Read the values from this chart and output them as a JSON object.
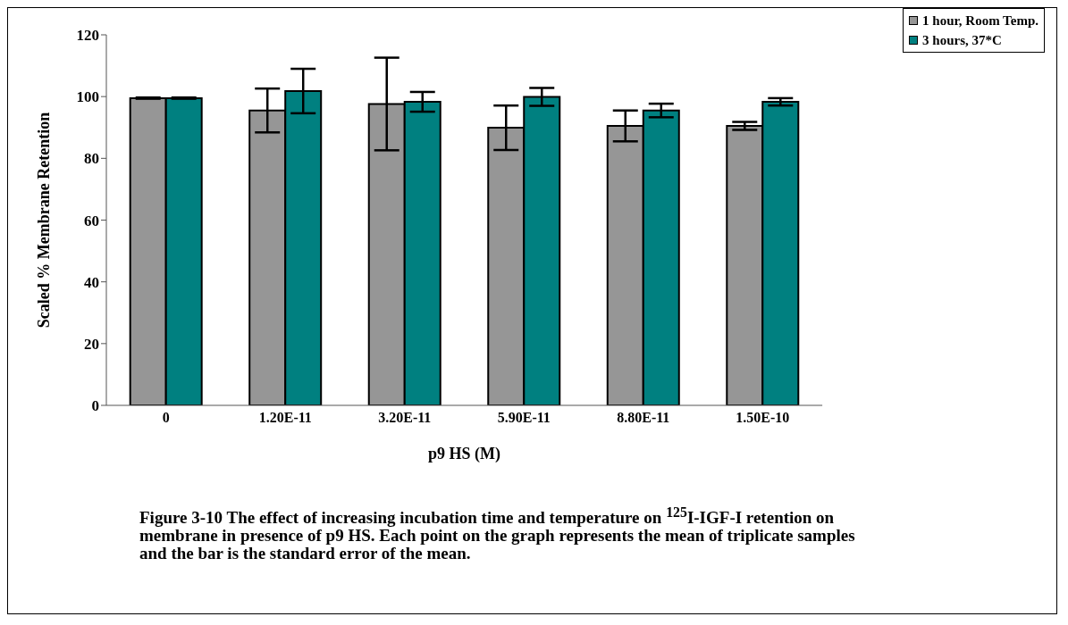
{
  "chart_data": {
    "type": "bar",
    "xlabel": "p9 HS (M)",
    "ylabel": "Scaled % Membrane Retention",
    "categories": [
      "0",
      "1.20E-11",
      "3.20E-11",
      "5.90E-11",
      "8.80E-11",
      "1.50E-10"
    ],
    "series": [
      {
        "name": "1 hour, Room Temp.",
        "color": "#969696",
        "values": [
          99.5,
          95.5,
          97.6,
          89.9,
          90.5,
          90.5
        ],
        "errors": [
          0.2,
          7.1,
          15,
          7.2,
          5,
          1.3
        ]
      },
      {
        "name": "3 hours, 37*C",
        "color": "#008080",
        "values": [
          99.5,
          101.8,
          98.3,
          99.9,
          95.5,
          98.3
        ],
        "errors": [
          0.2,
          7.2,
          3.2,
          2.9,
          2.2,
          1.2
        ]
      }
    ],
    "ylim": [
      0,
      120
    ],
    "yticks": [
      0,
      20,
      40,
      60,
      80,
      100,
      120
    ],
    "grid": false,
    "legend": "top right",
    "annotations": [
      "Figure 3-10  The effect of increasing incubation time and temperature on $^{125}$I-IGF-I retention on membrane in presence of p9 HS. Each point on the graph represents the mean of triplicate samples and the bar is the standard error of the mean."
    ]
  }
}
